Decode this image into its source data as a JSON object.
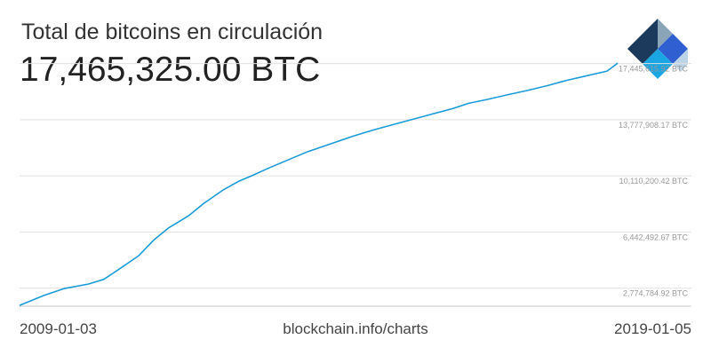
{
  "header": {
    "title": "Total de bitcoins en circulación",
    "value": "17,465,325.00 BTC"
  },
  "footer": {
    "start_date": "2009-01-03",
    "source": "blockchain.info/charts",
    "end_date": "2019-01-05"
  },
  "colors": {
    "line": "#1a9bd7",
    "grid": "#e0e0e0",
    "tick_text": "#999999",
    "logo": [
      "#1b3a5c",
      "#8aa5b8",
      "#2f5fd0",
      "#1aa6e3",
      "#bcd4e6"
    ]
  },
  "logo": {
    "icon": "blockchain-logo-icon"
  },
  "chart_data": {
    "type": "line",
    "title": "Total de bitcoins en circulación",
    "xlabel": "",
    "ylabel": "",
    "grid": true,
    "xlim": [
      "2009-01-03",
      "2019-01-05"
    ],
    "ylim": [
      1600000,
      18000000
    ],
    "yticks": [
      {
        "value": 2774784.92,
        "label": "2,774,784.92 BTC"
      },
      {
        "value": 6442492.67,
        "label": "6,442,492.67 BTC"
      },
      {
        "value": 10110200.42,
        "label": "10,110,200.42 BTC"
      },
      {
        "value": 13777908.17,
        "label": "13,777,908.17 BTC"
      },
      {
        "value": 17445615.92,
        "label": "17,445,615.92 BTC"
      }
    ],
    "series": [
      {
        "x": [
          "2009-01-03",
          "2009-06-01",
          "2009-10-01",
          "2010-03-01",
          "2010-06-01",
          "2010-09-01",
          "2011-01-01",
          "2011-04-01",
          "2011-07-01",
          "2011-11-01",
          "2012-02-01",
          "2012-06-01",
          "2012-09-01",
          "2012-11-28",
          "2013-03-01",
          "2013-07-01",
          "2013-11-01",
          "2014-04-01",
          "2014-08-01",
          "2014-12-01",
          "2015-04-01",
          "2015-08-01",
          "2015-12-01",
          "2016-04-01",
          "2016-07-09",
          "2016-11-01",
          "2017-03-01",
          "2017-07-01",
          "2017-11-01",
          "2018-03-01",
          "2018-07-01",
          "2018-11-01",
          "2019-01-05"
        ],
        "y": [
          1650000,
          2300000,
          2750000,
          3050000,
          3350000,
          4000000,
          4900000,
          5900000,
          6700000,
          7500000,
          8300000,
          9200000,
          9750000,
          10150000,
          10600000,
          11150000,
          11700000,
          12250000,
          12700000,
          13100000,
          13450000,
          13800000,
          14150000,
          14500000,
          14850000,
          15100000,
          15400000,
          15680000,
          16000000,
          16350000,
          16650000,
          16950000,
          17465325
        ]
      }
    ]
  }
}
